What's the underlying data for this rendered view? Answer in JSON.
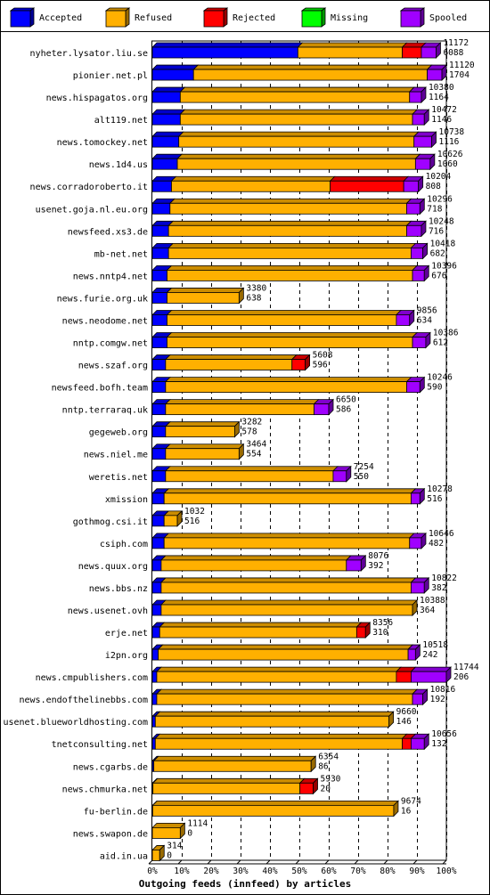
{
  "chart_data": {
    "type": "bar",
    "orientation": "horizontal",
    "stacked": true,
    "title": "",
    "xlabel": "Outgoing feeds (innfeed) by articles",
    "ylabel": "",
    "xlim": [
      0,
      100
    ],
    "ticks": [
      "0%",
      "10%",
      "20%",
      "30%",
      "40%",
      "50%",
      "60%",
      "70%",
      "80%",
      "90%",
      "100%"
    ],
    "legend_position": "top",
    "series_colors": {
      "Accepted": "#0000ff",
      "Refused": "#ffb000",
      "Rejected": "#ff0000",
      "Missing": "#00ff00",
      "Spooled": "#a000ff"
    },
    "series": [
      {
        "name": "Accepted"
      },
      {
        "name": "Refused"
      },
      {
        "name": "Rejected"
      },
      {
        "name": "Missing"
      },
      {
        "name": "Spooled"
      }
    ],
    "rows": [
      {
        "label": "nyheter.lysator.liu.se",
        "total": "11172",
        "accepted_value": "6088",
        "segments": {
          "Accepted": 49.5,
          "Refused": 35.5,
          "Rejected": 6.5,
          "Missing": 0,
          "Spooled": 5.0
        }
      },
      {
        "label": "pionier.net.pl",
        "total": "11120",
        "accepted_value": "1704",
        "segments": {
          "Accepted": 14.0,
          "Refused": 79.5,
          "Rejected": 0,
          "Missing": 0,
          "Spooled": 5.0
        }
      },
      {
        "label": "news.hispagatos.org",
        "total": "10380",
        "accepted_value": "1164",
        "segments": {
          "Accepted": 9.5,
          "Refused": 78.0,
          "Rejected": 0,
          "Missing": 0,
          "Spooled": 4.0
        }
      },
      {
        "label": "alt119.net",
        "total": "10472",
        "accepted_value": "1146",
        "segments": {
          "Accepted": 9.5,
          "Refused": 79.0,
          "Rejected": 0,
          "Missing": 0,
          "Spooled": 4.0
        }
      },
      {
        "label": "news.tomockey.net",
        "total": "10738",
        "accepted_value": "1116",
        "segments": {
          "Accepted": 9.0,
          "Refused": 80.0,
          "Rejected": 0,
          "Missing": 0,
          "Spooled": 6.0
        }
      },
      {
        "label": "news.1d4.us",
        "total": "10626",
        "accepted_value": "1060",
        "segments": {
          "Accepted": 8.5,
          "Refused": 81.0,
          "Rejected": 0,
          "Missing": 0,
          "Spooled": 5.0
        }
      },
      {
        "label": "news.corradoroberto.it",
        "total": "10204",
        "accepted_value": "808",
        "segments": {
          "Accepted": 6.5,
          "Refused": 54.0,
          "Rejected": 25.0,
          "Missing": 0,
          "Spooled": 5.0
        }
      },
      {
        "label": "usenet.goja.nl.eu.org",
        "total": "10296",
        "accepted_value": "718",
        "segments": {
          "Accepted": 6.0,
          "Refused": 80.5,
          "Rejected": 0,
          "Missing": 0,
          "Spooled": 4.5
        }
      },
      {
        "label": "newsfeed.xs3.de",
        "total": "10248",
        "accepted_value": "716",
        "segments": {
          "Accepted": 5.5,
          "Refused": 81.0,
          "Rejected": 0,
          "Missing": 0,
          "Spooled": 5.0
        }
      },
      {
        "label": "mb-net.net",
        "total": "10418",
        "accepted_value": "682",
        "segments": {
          "Accepted": 5.5,
          "Refused": 82.5,
          "Rejected": 0,
          "Missing": 0,
          "Spooled": 4.0
        }
      },
      {
        "label": "news.nntp4.net",
        "total": "10396",
        "accepted_value": "676",
        "segments": {
          "Accepted": 5.0,
          "Refused": 83.5,
          "Rejected": 0,
          "Missing": 0,
          "Spooled": 4.0
        }
      },
      {
        "label": "news.furie.org.uk",
        "total": "3380",
        "accepted_value": "638",
        "segments": {
          "Accepted": 5.0,
          "Refused": 24.5,
          "Rejected": 0,
          "Missing": 0,
          "Spooled": 0
        }
      },
      {
        "label": "news.neodome.net",
        "total": "9856",
        "accepted_value": "634",
        "segments": {
          "Accepted": 5.0,
          "Refused": 78.0,
          "Rejected": 0,
          "Missing": 0,
          "Spooled": 4.5
        }
      },
      {
        "label": "nntp.comgw.net",
        "total": "10386",
        "accepted_value": "612",
        "segments": {
          "Accepted": 5.0,
          "Refused": 83.5,
          "Rejected": 0,
          "Missing": 0,
          "Spooled": 4.5
        }
      },
      {
        "label": "news.szaf.org",
        "total": "5608",
        "accepted_value": "596",
        "segments": {
          "Accepted": 4.5,
          "Refused": 43.0,
          "Rejected": 4.5,
          "Missing": 0,
          "Spooled": 0
        }
      },
      {
        "label": "newsfeed.bofh.team",
        "total": "10246",
        "accepted_value": "590",
        "segments": {
          "Accepted": 4.5,
          "Refused": 82.0,
          "Rejected": 0,
          "Missing": 0,
          "Spooled": 4.5
        }
      },
      {
        "label": "nntp.terraraq.uk",
        "total": "6650",
        "accepted_value": "586",
        "segments": {
          "Accepted": 4.5,
          "Refused": 50.5,
          "Rejected": 0,
          "Missing": 0,
          "Spooled": 5.0
        }
      },
      {
        "label": "gegeweb.org",
        "total": "3282",
        "accepted_value": "578",
        "segments": {
          "Accepted": 4.5,
          "Refused": 23.5,
          "Rejected": 0,
          "Missing": 0,
          "Spooled": 0
        }
      },
      {
        "label": "news.niel.me",
        "total": "3464",
        "accepted_value": "554",
        "segments": {
          "Accepted": 4.5,
          "Refused": 25.0,
          "Rejected": 0,
          "Missing": 0,
          "Spooled": 0
        }
      },
      {
        "label": "weretis.net",
        "total": "7254",
        "accepted_value": "550",
        "segments": {
          "Accepted": 4.5,
          "Refused": 57.0,
          "Rejected": 0,
          "Missing": 0,
          "Spooled": 4.5
        }
      },
      {
        "label": "xmission",
        "total": "10278",
        "accepted_value": "516",
        "segments": {
          "Accepted": 4.0,
          "Refused": 84.0,
          "Rejected": 0,
          "Missing": 0,
          "Spooled": 3.0
        }
      },
      {
        "label": "gothmog.csi.it",
        "total": "1032",
        "accepted_value": "516",
        "segments": {
          "Accepted": 4.0,
          "Refused": 4.5,
          "Rejected": 0,
          "Missing": 0,
          "Spooled": 0
        }
      },
      {
        "label": "csiph.com",
        "total": "10646",
        "accepted_value": "482",
        "segments": {
          "Accepted": 4.0,
          "Refused": 83.5,
          "Rejected": 0,
          "Missing": 0,
          "Spooled": 4.0
        }
      },
      {
        "label": "news.quux.org",
        "total": "8076",
        "accepted_value": "392",
        "segments": {
          "Accepted": 3.0,
          "Refused": 63.0,
          "Rejected": 0,
          "Missing": 0,
          "Spooled": 5.0
        }
      },
      {
        "label": "news.bbs.nz",
        "total": "10822",
        "accepted_value": "382",
        "segments": {
          "Accepted": 3.0,
          "Refused": 85.0,
          "Rejected": 0,
          "Missing": 0,
          "Spooled": 4.5
        }
      },
      {
        "label": "news.usenet.ovh",
        "total": "10388",
        "accepted_value": "364",
        "segments": {
          "Accepted": 3.0,
          "Refused": 85.5,
          "Rejected": 0,
          "Missing": 0,
          "Spooled": 0
        }
      },
      {
        "label": "erje.net",
        "total": "8356",
        "accepted_value": "310",
        "segments": {
          "Accepted": 2.5,
          "Refused": 67.0,
          "Rejected": 3.0,
          "Missing": 0,
          "Spooled": 0
        }
      },
      {
        "label": "i2pn.org",
        "total": "10518",
        "accepted_value": "242",
        "segments": {
          "Accepted": 2.0,
          "Refused": 85.0,
          "Rejected": 0,
          "Missing": 0,
          "Spooled": 2.5
        }
      },
      {
        "label": "news.cmpublishers.com",
        "total": "11744",
        "accepted_value": "206",
        "segments": {
          "Accepted": 1.5,
          "Refused": 81.5,
          "Rejected": 5.0,
          "Missing": 0,
          "Spooled": 12.0
        }
      },
      {
        "label": "news.endofthelinebbs.com",
        "total": "10816",
        "accepted_value": "192",
        "segments": {
          "Accepted": 1.5,
          "Refused": 87.0,
          "Rejected": 0,
          "Missing": 0,
          "Spooled": 3.5
        }
      },
      {
        "label": "usenet.blueworldhosting.com",
        "total": "9660",
        "accepted_value": "146",
        "segments": {
          "Accepted": 1.0,
          "Refused": 79.5,
          "Rejected": 0,
          "Missing": 0,
          "Spooled": 0
        }
      },
      {
        "label": "tnetconsulting.net",
        "total": "10656",
        "accepted_value": "132",
        "segments": {
          "Accepted": 1.0,
          "Refused": 84.0,
          "Rejected": 3.0,
          "Missing": 0,
          "Spooled": 4.5
        }
      },
      {
        "label": "news.cgarbs.de",
        "total": "6354",
        "accepted_value": "86",
        "segments": {
          "Accepted": 0.5,
          "Refused": 53.5,
          "Rejected": 0,
          "Missing": 0,
          "Spooled": 0
        }
      },
      {
        "label": "news.chmurka.net",
        "total": "5930",
        "accepted_value": "20",
        "segments": {
          "Accepted": 0.2,
          "Refused": 50.0,
          "Rejected": 4.5,
          "Missing": 0,
          "Spooled": 0
        }
      },
      {
        "label": "fu-berlin.de",
        "total": "9674",
        "accepted_value": "16",
        "segments": {
          "Accepted": 0.1,
          "Refused": 82.0,
          "Rejected": 0,
          "Missing": 0,
          "Spooled": 0
        }
      },
      {
        "label": "news.swapon.de",
        "total": "1114",
        "accepted_value": "0",
        "segments": {
          "Accepted": 0,
          "Refused": 9.5,
          "Rejected": 0,
          "Missing": 0,
          "Spooled": 0
        }
      },
      {
        "label": "aid.in.ua",
        "total": "314",
        "accepted_value": "0",
        "segments": {
          "Accepted": 0,
          "Refused": 2.5,
          "Rejected": 0,
          "Missing": 0,
          "Spooled": 0
        }
      }
    ]
  }
}
